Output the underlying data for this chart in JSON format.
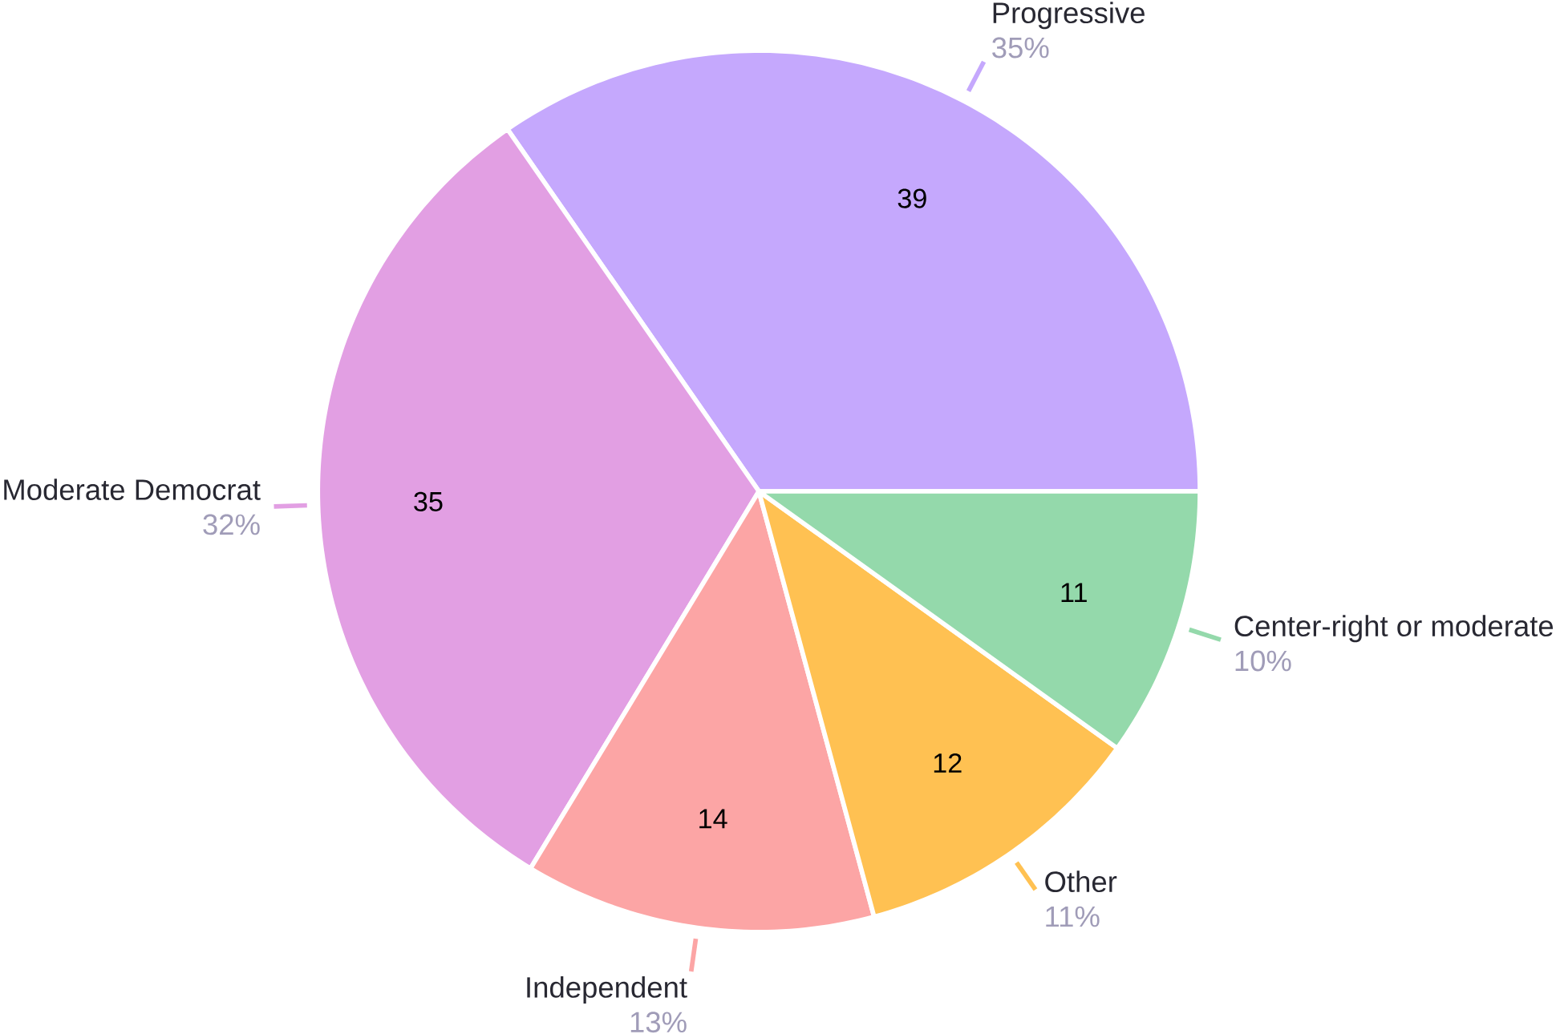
{
  "chart_data": {
    "type": "pie",
    "categories": [
      "Progressive",
      "Moderate Democrat",
      "Independent",
      "Other",
      "Center-right or moderate"
    ],
    "values": [
      35,
      32,
      13,
      11,
      10
    ],
    "value_labels": [
      "35%",
      "32%",
      "13%",
      "11%",
      "10%"
    ],
    "colors": [
      "#c5a8fd",
      "#e29fe3",
      "#fca5a5",
      "#ffc152",
      "#94d9ab"
    ],
    "annotations": [
      {
        "text": "39",
        "x": "Progressive"
      },
      {
        "text": "35",
        "x": "Moderate Democrat"
      },
      {
        "text": "14",
        "x": "Independent"
      },
      {
        "text": "12",
        "x": "Other"
      },
      {
        "text": "11",
        "x": "Center-right or moderate"
      }
    ]
  }
}
